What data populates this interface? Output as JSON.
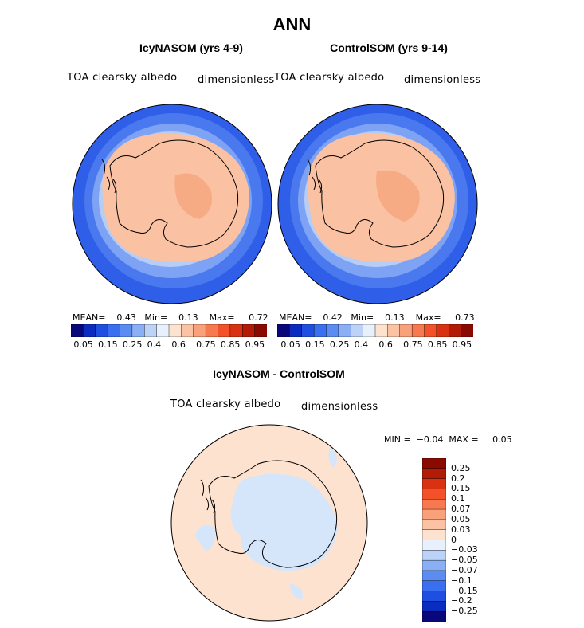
{
  "figure": {
    "title": "ANN"
  },
  "panels": [
    {
      "title": "IcyNASOM (yrs 4-9)",
      "variable": "TOA clearsky albedo",
      "units": "dimensionless",
      "mean_label": "MEAN=",
      "mean_value": "0.43",
      "min_label": "Min=",
      "min_value": "0.13",
      "max_label": "Max=",
      "max_value": "0.72"
    },
    {
      "title": "ControlSOM (yrs 9-14)",
      "variable": "TOA clearsky albedo",
      "units": "dimensionless",
      "mean_label": "MEAN=",
      "mean_value": "0.42",
      "min_label": "Min=",
      "min_value": "0.13",
      "max_label": "Max=",
      "max_value": "0.73"
    }
  ],
  "top_colorbar": {
    "colors": [
      "#08087a",
      "#0a2dbf",
      "#1e4fe0",
      "#3a6ff0",
      "#5b8cf2",
      "#8aaff5",
      "#bcd3f7",
      "#e7f0fb",
      "#fde2cf",
      "#fbc3a3",
      "#f9a17b",
      "#f7794f",
      "#f2512a",
      "#d93212",
      "#b21b06",
      "#8b0a00"
    ],
    "tick_labels": [
      "0.05",
      "0.15",
      "0.25",
      "0.4",
      "0.6",
      "0.75",
      "0.85",
      "0.95"
    ]
  },
  "diff_panel": {
    "title": "IcyNASOM - ControlSOM",
    "variable": "TOA clearsky albedo",
    "units": "dimensionless",
    "min_label": "MIN =",
    "min_value": "−0.04",
    "max_label": "MAX =",
    "max_value": "0.05"
  },
  "diff_colorbar": {
    "colors": [
      "#8b0a00",
      "#b21b06",
      "#d93212",
      "#f2512a",
      "#f7794f",
      "#f9a17b",
      "#fbc3a3",
      "#fde2cf",
      "#e7f0fb",
      "#bcd3f7",
      "#8aaff5",
      "#5b8cf2",
      "#3a6ff0",
      "#1e4fe0",
      "#0a2dbf",
      "#08087a"
    ],
    "tick_labels": [
      "0.25",
      "0.2",
      "0.15",
      "0.1",
      "0.07",
      "0.05",
      "0.03",
      "0",
      "−0.03",
      "−0.05",
      "−0.07",
      "−0.1",
      "−0.15",
      "−0.2",
      "−0.25"
    ]
  },
  "map_colors": {
    "ocean_deep": "#2f5fe8",
    "ocean_mid": "#4a78ef",
    "ocean_light": "#7ea3f4",
    "ocean_pale": "#b6cdf6",
    "ice_edge": "#e6effb",
    "land": "#fac1a3",
    "land_inner": "#f7ab85",
    "coast": "#000000",
    "diff_pos": "#fde2cf",
    "diff_neg": "#d6e6fa"
  }
}
